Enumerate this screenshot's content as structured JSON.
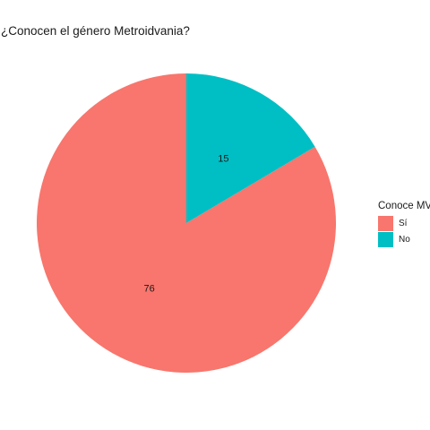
{
  "chart_data": {
    "type": "pie",
    "title": "¿Conocen el género Metroidvania?",
    "legend_title": "Conoce MV",
    "legend_position": "right",
    "slices": [
      {
        "label": "Sí",
        "value": 76,
        "color": "#F8766D"
      },
      {
        "label": "No",
        "value": 15,
        "color": "#00BFC4"
      }
    ]
  }
}
